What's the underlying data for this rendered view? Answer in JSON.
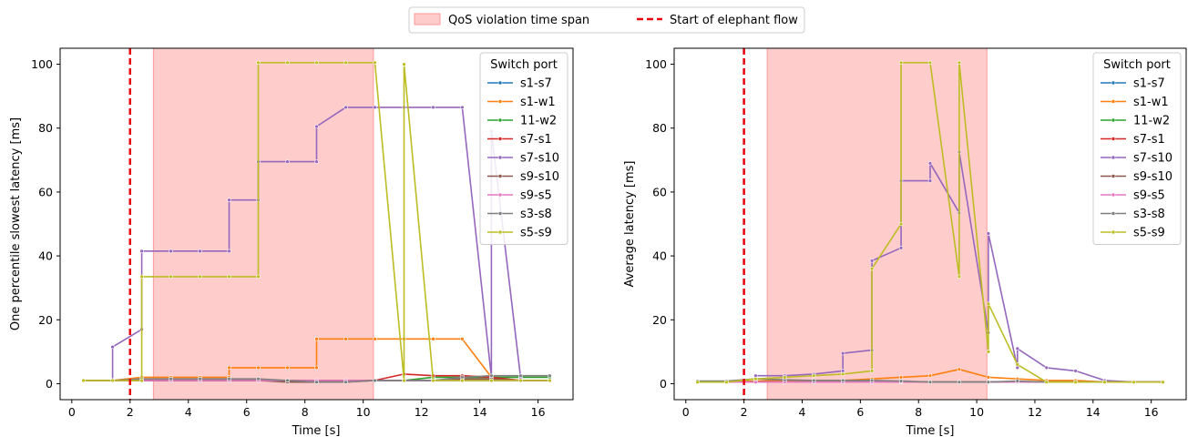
{
  "figure_legend": {
    "qos_label": "QoS violation time span",
    "elephant_label": "Start of elephant flow",
    "qos_color": "#ffcccc",
    "qos_edge_color": "#ff9999",
    "elephant_color": "#e8000b"
  },
  "chart_data": [
    {
      "type": "line",
      "ylabel": "One percentile slowest latency [ms]",
      "xlabel": "Time [s]",
      "xlim": [
        -0.4,
        17.2
      ],
      "ylim": [
        -5,
        105
      ],
      "xticks": [
        "0",
        "2",
        "4",
        "6",
        "8",
        "10",
        "12",
        "14",
        "16"
      ],
      "yticks": [
        "0",
        "20",
        "40",
        "60",
        "80",
        "100"
      ],
      "qos_span": [
        2.8,
        10.35
      ],
      "elephant_x": 2.0,
      "legend_title": "Switch port",
      "series": [
        {
          "name": "s1-s7",
          "color": "#1f77b4",
          "x": [
            0.4,
            1.4,
            2.4,
            3.4,
            4.4,
            5.4,
            6.4,
            7.4,
            8.4,
            9.4,
            10.4,
            11.4,
            12.4,
            13.4,
            14.4,
            15.4,
            16.4
          ],
          "y": [
            1,
            1,
            1,
            1,
            1,
            1,
            1,
            1,
            1,
            1,
            1,
            1,
            1,
            1,
            1,
            1,
            1
          ]
        },
        {
          "name": "s1-w1",
          "color": "#ff7f0e",
          "x": [
            0.4,
            1.4,
            2.4,
            3.4,
            4.4,
            5.4,
            5.4,
            6.4,
            7.4,
            8.4,
            8.4,
            9.4,
            10.4,
            11.4,
            12.4,
            13.4,
            14.4,
            15.4,
            16.4
          ],
          "y": [
            1,
            1,
            2,
            2,
            2,
            2,
            5,
            5,
            5,
            5,
            14,
            14,
            14,
            14,
            14,
            14,
            2,
            1,
            1
          ]
        },
        {
          "name": "11-w2",
          "color": "#2ca02c",
          "x": [
            0.4,
            1.4,
            2.4,
            3.4,
            4.4,
            5.4,
            6.4,
            7.4,
            8.4,
            9.4,
            10.4,
            11.4,
            12.4,
            13.4,
            14.4,
            15.4,
            16.4
          ],
          "y": [
            1,
            1,
            1,
            1,
            1,
            1,
            1,
            1,
            1,
            1,
            1,
            1,
            2,
            2,
            2,
            2,
            2
          ]
        },
        {
          "name": "s7-s1",
          "color": "#d62728",
          "x": [
            0.4,
            1.4,
            2.4,
            3.4,
            4.4,
            5.4,
            6.4,
            7.4,
            8.4,
            9.4,
            10.4,
            11.4,
            12.4,
            13.4,
            14.4,
            15.4,
            16.4
          ],
          "y": [
            1,
            1,
            1,
            1,
            1,
            1,
            1,
            1,
            1,
            1,
            1,
            3,
            2.5,
            2.5,
            2,
            1,
            1
          ]
        },
        {
          "name": "s7-s10",
          "color": "#9467bd",
          "x": [
            1.4,
            1.4,
            2.4,
            2.4,
            3.4,
            4.4,
            5.4,
            5.4,
            6.4,
            6.4,
            7.4,
            8.4,
            8.4,
            9.4,
            10.4,
            11.4,
            12.4,
            13.4,
            14.4,
            14.4,
            15.4,
            15.4
          ],
          "y": [
            1,
            11.5,
            17,
            41.5,
            41.5,
            41.5,
            41.5,
            57.5,
            57.5,
            69.5,
            69.5,
            69.5,
            80.5,
            86.5,
            86.5,
            86.5,
            86.5,
            86.5,
            2,
            79,
            2,
            2
          ]
        },
        {
          "name": "s9-s10",
          "color": "#8c564b",
          "x": [
            0.4,
            1.4,
            2.4,
            3.4,
            4.4,
            5.4,
            6.4,
            7.4,
            8.4,
            9.4,
            10.4,
            11.4,
            12.4,
            13.4,
            14.4,
            15.4,
            16.4
          ],
          "y": [
            1,
            1,
            1,
            1,
            1,
            1,
            1,
            0.5,
            0.5,
            0.5,
            1,
            1,
            1,
            1.5,
            1.5,
            1,
            1
          ]
        },
        {
          "name": "s9-s5",
          "color": "#e377c2",
          "x": [
            0.4,
            1.4,
            2.4,
            3.4,
            4.4,
            5.4,
            6.4,
            7.4,
            8.4,
            9.4,
            10.4,
            11.4,
            12.4,
            13.4,
            14.4,
            15.4,
            16.4
          ],
          "y": [
            1,
            1,
            1,
            1,
            1,
            1,
            1,
            1,
            1,
            1,
            1,
            1,
            1,
            1,
            1,
            1,
            1
          ]
        },
        {
          "name": "s3-s8",
          "color": "#7f7f7f",
          "x": [
            0.4,
            1.4,
            2.4,
            3.4,
            4.4,
            5.4,
            6.4,
            7.4,
            8.4,
            9.4,
            10.4,
            11.4,
            12.4,
            13.4,
            14.4,
            15.4,
            16.4
          ],
          "y": [
            1,
            1,
            1.5,
            1.5,
            1.5,
            1.5,
            1.5,
            1,
            0.5,
            0.5,
            1,
            1,
            1,
            2,
            2.5,
            2.5,
            2.5
          ]
        },
        {
          "name": "s5-s9",
          "color": "#bcbd22",
          "x": [
            0.4,
            1.4,
            2.4,
            2.4,
            3.4,
            4.4,
            5.4,
            6.4,
            6.4,
            7.4,
            8.4,
            9.4,
            10.4,
            11.4,
            11.4,
            12.4,
            13.4,
            14.4,
            15.4,
            16.4
          ],
          "y": [
            1,
            1,
            1,
            33.5,
            33.5,
            33.5,
            33.5,
            33.5,
            100.5,
            100.5,
            100.5,
            100.5,
            100.5,
            1,
            100,
            1,
            1,
            1,
            1,
            1
          ]
        }
      ]
    },
    {
      "type": "line",
      "ylabel": "Average latency [ms]",
      "xlabel": "Time [s]",
      "xlim": [
        -0.4,
        17.2
      ],
      "ylim": [
        -5,
        105
      ],
      "xticks": [
        "0",
        "2",
        "4",
        "6",
        "8",
        "10",
        "12",
        "14",
        "16"
      ],
      "yticks": [
        "0",
        "20",
        "40",
        "60",
        "80",
        "100"
      ],
      "qos_span": [
        2.8,
        10.35
      ],
      "elephant_x": 2.0,
      "legend_title": "Switch port",
      "series": [
        {
          "name": "s1-s7",
          "color": "#1f77b4",
          "x": [
            0.4,
            1.4,
            2.4,
            3.4,
            4.4,
            5.4,
            6.4,
            7.4,
            8.4,
            9.4,
            10.4,
            11.4,
            12.4,
            13.4,
            14.4,
            15.4,
            16.4
          ],
          "y": [
            0.5,
            0.5,
            0.5,
            0.5,
            0.5,
            0.5,
            0.5,
            0.5,
            0.5,
            0.5,
            0.5,
            0.5,
            0.5,
            0.5,
            0.5,
            0.5,
            0.5
          ]
        },
        {
          "name": "s1-w1",
          "color": "#ff7f0e",
          "x": [
            0.4,
            1.4,
            2.4,
            3.4,
            4.4,
            5.4,
            6.4,
            7.4,
            8.4,
            9.4,
            10.4,
            11.4,
            12.4,
            13.4,
            14.4,
            15.4,
            16.4
          ],
          "y": [
            0.5,
            0.5,
            0.8,
            1,
            1,
            1,
            1.5,
            2,
            2.5,
            4.5,
            2,
            1.5,
            1,
            1,
            0.5,
            0.5,
            0.5
          ]
        },
        {
          "name": "11-w2",
          "color": "#2ca02c",
          "x": [
            0.4,
            1.4,
            2.4,
            3.4,
            4.4,
            5.4,
            6.4,
            7.4,
            8.4,
            9.4,
            10.4,
            11.4,
            12.4,
            13.4,
            14.4,
            15.4,
            16.4
          ],
          "y": [
            0.5,
            0.5,
            0.5,
            0.5,
            0.5,
            0.5,
            0.5,
            0.5,
            0.5,
            0.5,
            0.5,
            0.5,
            0.5,
            0.5,
            0.5,
            0.5,
            0.5
          ]
        },
        {
          "name": "s7-s1",
          "color": "#d62728",
          "x": [
            0.4,
            1.4,
            2.4,
            3.4,
            4.4,
            5.4,
            6.4,
            7.4,
            8.4,
            9.4,
            10.4,
            11.4,
            12.4,
            13.4,
            14.4,
            15.4,
            16.4
          ],
          "y": [
            0.5,
            0.5,
            0.5,
            0.5,
            0.5,
            0.5,
            0.5,
            0.5,
            0.5,
            0.5,
            0.5,
            0.5,
            0.5,
            0.5,
            0.5,
            0.5,
            0.5
          ]
        },
        {
          "name": "s7-s10",
          "color": "#9467bd",
          "x": [
            2.4,
            3.4,
            4.4,
            5.4,
            5.4,
            6.4,
            6.4,
            7.4,
            7.4,
            8.4,
            8.4,
            9.4,
            9.4,
            10.4,
            10.4,
            11.4,
            11.4,
            12.4,
            13.4,
            14.4,
            15.4,
            16.4
          ],
          "y": [
            2.5,
            2.5,
            3,
            4,
            9.5,
            10.5,
            38.5,
            42.5,
            63.5,
            63.5,
            69,
            53.5,
            72.5,
            16,
            47,
            5,
            11,
            5,
            4,
            1,
            0.5,
            0.5
          ]
        },
        {
          "name": "s9-s10",
          "color": "#8c564b",
          "x": [
            0.4,
            1.4,
            2.4,
            3.4,
            4.4,
            5.4,
            6.4,
            7.4,
            8.4,
            9.4,
            10.4,
            11.4,
            12.4,
            13.4,
            14.4,
            15.4,
            16.4
          ],
          "y": [
            0.5,
            0.5,
            0.5,
            0.5,
            0.5,
            0.5,
            0.5,
            0.5,
            0.5,
            0.5,
            0.5,
            0.5,
            0.5,
            0.5,
            0.5,
            0.5,
            0.5
          ]
        },
        {
          "name": "s9-s5",
          "color": "#e377c2",
          "x": [
            0.4,
            1.4,
            2.4,
            3.4,
            4.4,
            5.4,
            6.4,
            7.4,
            8.4,
            9.4,
            10.4,
            11.4,
            12.4,
            13.4,
            14.4,
            15.4,
            16.4
          ],
          "y": [
            0.5,
            0.5,
            0.5,
            0.5,
            0.5,
            0.5,
            0.5,
            0.5,
            0.5,
            0.5,
            0.5,
            0.5,
            0.5,
            0.5,
            0.5,
            0.5,
            0.5
          ]
        },
        {
          "name": "s3-s8",
          "color": "#7f7f7f",
          "x": [
            0.4,
            1.4,
            2.4,
            3.4,
            4.4,
            5.4,
            6.4,
            7.4,
            8.4,
            9.4,
            10.4,
            11.4,
            12.4,
            13.4,
            14.4,
            15.4,
            16.4
          ],
          "y": [
            0.8,
            0.8,
            1.5,
            1.2,
            1,
            1,
            1,
            0.8,
            0.5,
            0.5,
            0.5,
            0.8,
            0.5,
            0.5,
            0.5,
            0.5,
            0.5
          ]
        },
        {
          "name": "s5-s9",
          "color": "#bcbd22",
          "x": [
            0.4,
            1.4,
            2.4,
            3.4,
            4.4,
            5.4,
            6.4,
            6.4,
            7.4,
            7.4,
            8.4,
            9.4,
            9.4,
            10.4,
            10.4,
            11.4,
            12.4,
            13.4,
            14.4,
            15.4,
            16.4
          ],
          "y": [
            0.5,
            0.5,
            1.5,
            2,
            2.5,
            3,
            4,
            36,
            50,
            100.5,
            100.5,
            33.5,
            100.5,
            10,
            25,
            6,
            0.5,
            0.5,
            0.5,
            0.5,
            0.5
          ]
        }
      ]
    }
  ]
}
